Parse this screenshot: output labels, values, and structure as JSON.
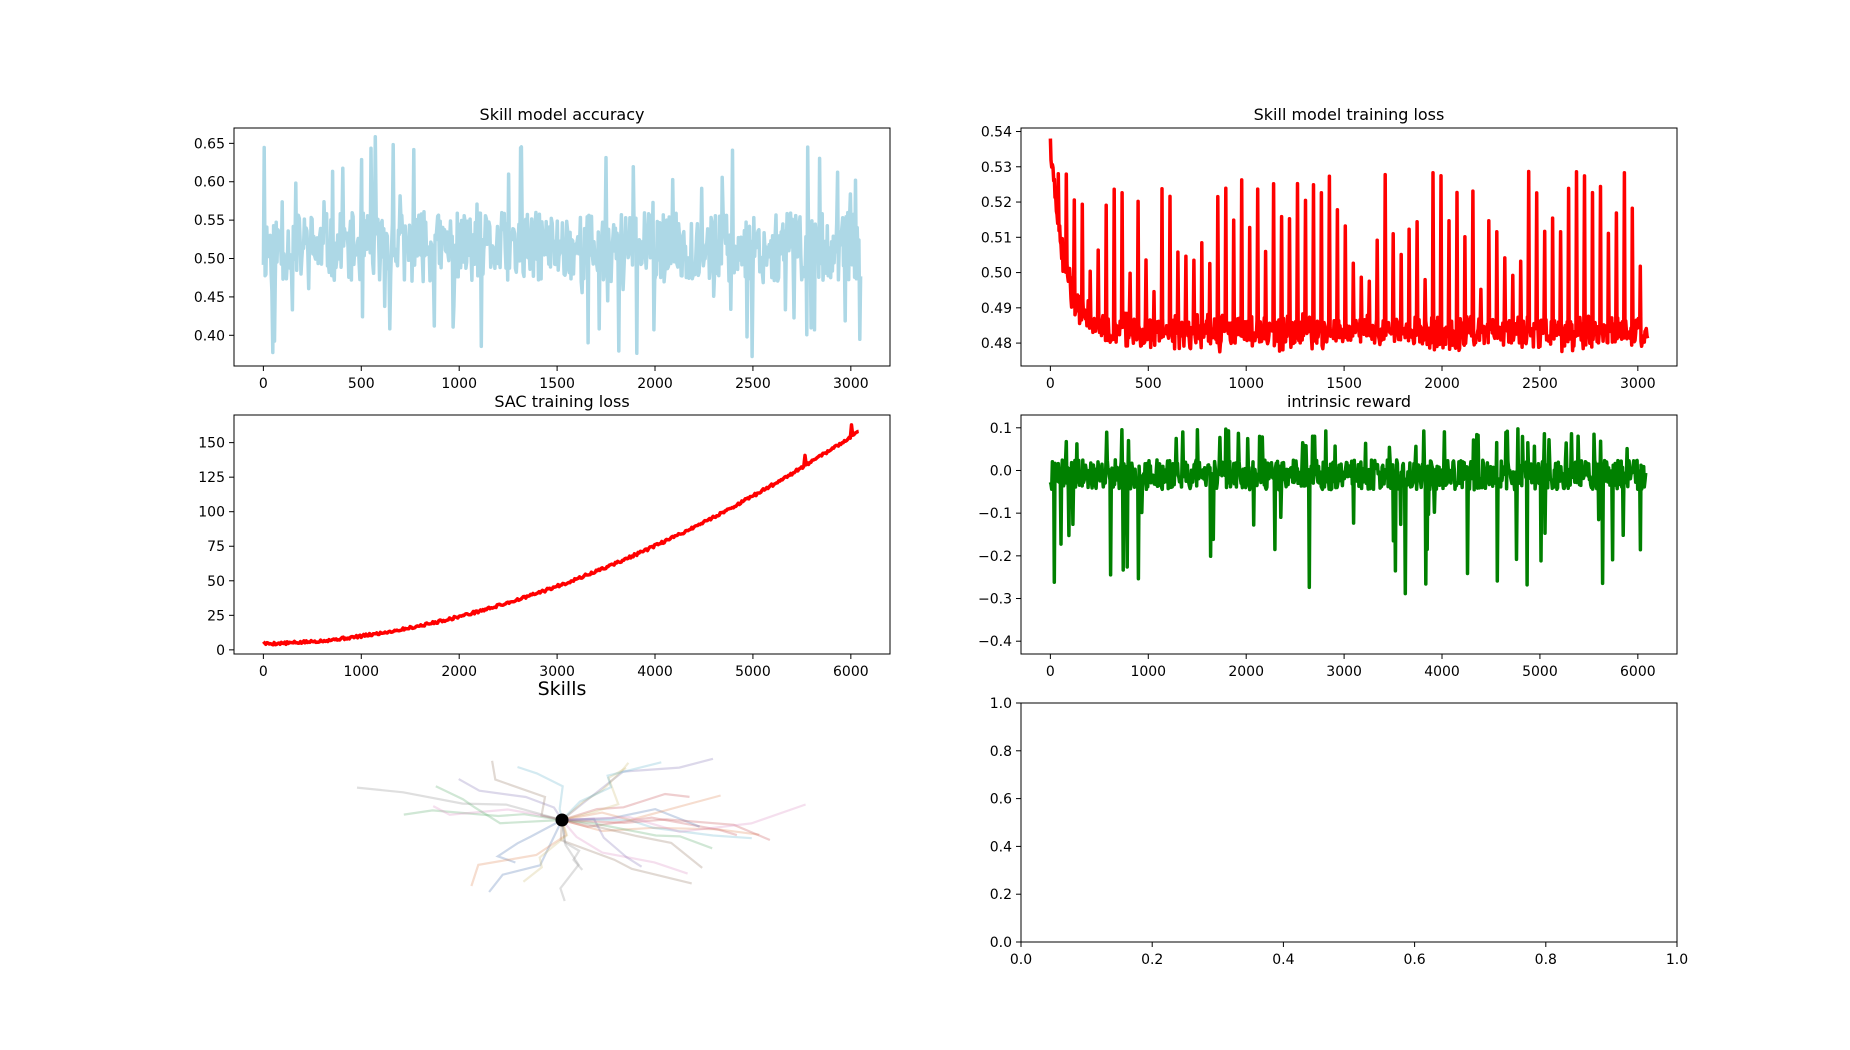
{
  "chart_data": [
    {
      "type": "line",
      "title": "Skill model accuracy",
      "xlim": [
        -150,
        3200
      ],
      "ylim": [
        0.36,
        0.67
      ],
      "xticks": [
        0,
        500,
        1000,
        1500,
        2000,
        2500,
        3000
      ],
      "yticks": [
        0.4,
        0.45,
        0.5,
        0.55,
        0.6,
        0.65
      ],
      "ytick_decimals": 2,
      "x_range": [
        0,
        3050
      ],
      "series": [
        {
          "color": "#add8e6",
          "pattern": "noise",
          "center": 0.515,
          "spread": 0.045,
          "min": 0.365,
          "max": 0.66,
          "points": 700,
          "seed": 11
        }
      ]
    },
    {
      "type": "line",
      "title": "Skill model training loss",
      "xlim": [
        -150,
        3200
      ],
      "ylim": [
        0.4735,
        0.541
      ],
      "xticks": [
        0,
        500,
        1000,
        1500,
        2000,
        2500,
        3000
      ],
      "yticks": [
        0.48,
        0.49,
        0.5,
        0.51,
        0.52,
        0.53,
        0.54
      ],
      "ytick_decimals": 2,
      "x_range": [
        0,
        3050
      ],
      "series": [
        {
          "color": "#ff0000",
          "pattern": "decay-spikes",
          "start": 0.538,
          "floor": 0.4865,
          "low": 0.474,
          "spike_max": 0.529,
          "points": 900,
          "seed": 23
        }
      ]
    },
    {
      "type": "line",
      "title": "SAC training loss",
      "xlim": [
        -300,
        6400
      ],
      "ylim": [
        -3,
        170
      ],
      "xticks": [
        0,
        1000,
        2000,
        3000,
        4000,
        5000,
        6000
      ],
      "yticks": [
        0,
        25,
        50,
        75,
        100,
        125,
        150
      ],
      "ytick_decimals": 0,
      "x_range": [
        0,
        6080
      ],
      "series": [
        {
          "color": "#ff0000",
          "pattern": "growth",
          "start": 6,
          "dip": 4.5,
          "end": 158,
          "max": 165,
          "points": 500,
          "seed": 5
        }
      ]
    },
    {
      "type": "line",
      "title": "intrinsic reward",
      "xlim": [
        -300,
        6400
      ],
      "ylim": [
        -0.43,
        0.13
      ],
      "xticks": [
        0,
        1000,
        2000,
        3000,
        4000,
        5000,
        6000
      ],
      "yticks": [
        -0.4,
        -0.3,
        -0.2,
        -0.1,
        0.0,
        0.1
      ],
      "ytick_decimals": 1,
      "x_range": [
        0,
        6080
      ],
      "series": [
        {
          "color": "#008000",
          "pattern": "reward",
          "center": -0.01,
          "spread": 0.035,
          "min": -0.405,
          "max": 0.12,
          "points": 900,
          "seed": 41
        }
      ]
    },
    {
      "type": "scatter",
      "title": "Skills",
      "axes_visible": false,
      "origin": [
        0,
        0
      ],
      "marker_color": "#000000",
      "trajectory_colors": [
        "#4c72b0",
        "#dd8452",
        "#55a868",
        "#c44e52",
        "#8172b3",
        "#937860",
        "#da8bc3",
        "#8c8c8c",
        "#ccb974",
        "#64b5cd"
      ],
      "trajectories": 30,
      "seed": 7
    },
    {
      "type": "line",
      "title": "",
      "xlim": [
        0,
        1
      ],
      "ylim": [
        0,
        1
      ],
      "xticks": [
        0.0,
        0.2,
        0.4,
        0.6,
        0.8,
        1.0
      ],
      "yticks": [
        0.0,
        0.2,
        0.4,
        0.6,
        0.8,
        1.0
      ],
      "ytick_decimals": 1,
      "series": []
    }
  ]
}
